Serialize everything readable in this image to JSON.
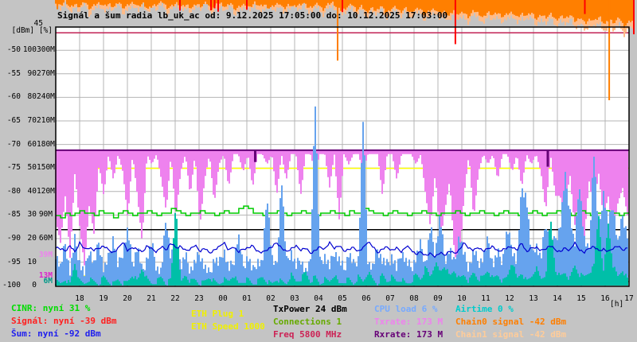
{
  "title": "Signál a šum radia lb_uk_ac od: 9.12.2025 17:05:00 do: 10.12.2025 17:03:00",
  "y_axis": {
    "top_tick": "45",
    "units": "[dBm] [%]",
    "rows": [
      {
        "dbm": "-50",
        "pct": "100",
        "mbit": "300M"
      },
      {
        "dbm": "-55",
        "pct": "90",
        "mbit": "270M"
      },
      {
        "dbm": "-60",
        "pct": "80",
        "mbit": "240M"
      },
      {
        "dbm": "-65",
        "pct": "70",
        "mbit": "210M"
      },
      {
        "dbm": "-70",
        "pct": "60",
        "mbit": "180M"
      },
      {
        "dbm": "-75",
        "pct": "50",
        "mbit": "150M"
      },
      {
        "dbm": "-80",
        "pct": "40",
        "mbit": "120M"
      },
      {
        "dbm": "-85",
        "pct": "30",
        "mbit": "90M"
      },
      {
        "dbm": "-90",
        "pct": "20",
        "mbit": "60M"
      },
      {
        "dbm": "-95",
        "pct": "10",
        "mbit": ""
      },
      {
        "dbm": "-100",
        "pct": "0",
        "mbit": ""
      }
    ],
    "overlays": [
      {
        "text": "39M",
        "color": "#ee82ee",
        "mbit": 39
      },
      {
        "text": "13M",
        "color": "#dd22cc",
        "mbit": 13
      },
      {
        "text": "6M",
        "color": "#009988",
        "mbit": 6
      }
    ]
  },
  "x_axis": {
    "hours": [
      "18",
      "19",
      "20",
      "21",
      "22",
      "23",
      "00",
      "01",
      "02",
      "03",
      "04",
      "05",
      "06",
      "07",
      "08",
      "09",
      "10",
      "11",
      "12",
      "13",
      "14",
      "15",
      "16",
      "17"
    ],
    "unit": "[h]"
  },
  "legend": {
    "radio_left": [
      {
        "label": "CINR: nyní 31 %",
        "color": "#00dd00"
      },
      {
        "label": "Signál: nyní -39 dBm",
        "color": "#ff2020"
      },
      {
        "label": "Šum: nyní -92 dBm",
        "color": "#2020ee"
      }
    ],
    "eth": [
      {
        "label": "ETH Plug 1",
        "color": "#f0f000"
      },
      {
        "label": "ETH Speed 1000",
        "color": "#f0f000"
      }
    ],
    "radio_info": [
      {
        "label": "TxPower 24 dBm",
        "color": "#000000"
      },
      {
        "label": "Connections 1",
        "color": "#66aa00"
      },
      {
        "label": "Freq 5800 MHz",
        "color": "#cc2255"
      }
    ],
    "rates": [
      {
        "label": "CPU load 6 %",
        "color": "#77aaff"
      },
      {
        "label": "Txrate: 173 M",
        "color": "#ee82ee"
      },
      {
        "label": "Rxrate: 173 M",
        "color": "#660077"
      }
    ],
    "chains": [
      {
        "label": "Airtime 0 %",
        "color": "#00cccc"
      },
      {
        "label": "Chain0 signal -42 dBm",
        "color": "#ff7f00"
      },
      {
        "label": "Chain1 signal -42 dBm",
        "color": "#ffcc99"
      }
    ]
  },
  "chart_data": {
    "type": "line",
    "title": "Signál a šum radia lb_uk_ac",
    "time_span_hours": 24,
    "x_start": "9.12.2025 17:05:00",
    "x_end": "10.12.2025 17:03:00",
    "axes": {
      "dbm_range": [
        -100,
        -45
      ],
      "pct_range": [
        0,
        100
      ],
      "mbit_range": [
        0,
        300
      ],
      "grid": true
    },
    "series": [
      {
        "name": "cinr_pct",
        "color": "#00cc00",
        "axis": "pct",
        "style": "step",
        "samples": [
          30,
          29,
          31,
          30,
          31,
          32,
          31,
          31,
          30,
          32,
          31,
          31,
          29,
          31,
          32,
          31,
          30,
          31,
          31,
          32,
          31,
          30,
          31,
          31,
          33,
          32,
          31,
          30,
          31,
          31,
          32,
          31,
          31,
          30,
          31,
          32,
          31,
          31,
          33,
          34,
          33,
          31,
          31,
          30,
          31,
          31,
          32,
          31,
          30,
          31,
          31,
          32,
          31,
          31,
          30,
          31,
          31,
          32,
          31,
          31,
          30,
          32,
          31,
          31,
          33,
          32,
          31,
          31,
          30,
          31,
          32,
          31,
          31,
          30,
          31,
          31,
          32,
          31,
          31,
          30,
          31,
          31,
          31,
          32,
          31,
          30,
          31,
          31,
          32,
          31,
          31,
          30,
          31,
          32,
          31,
          31,
          30,
          31,
          31,
          32,
          31,
          30,
          31,
          31,
          32,
          31,
          31,
          30,
          31,
          32,
          31,
          30,
          31,
          31,
          32,
          31,
          31,
          30,
          31,
          31
        ]
      },
      {
        "name": "noise_dbm",
        "color": "#0000d0",
        "axis": "dbm",
        "style": "line",
        "jitter": 0.22,
        "samples": [
          -91.8,
          -92.2,
          -92.6,
          -91.5,
          -92.9,
          -90.8,
          -92.3,
          -91.9,
          -92.5,
          -92.0,
          -91.6,
          -92.4,
          -93.0,
          -92.1,
          -90.6,
          -92.7,
          -91.8,
          -92.3,
          -92.9,
          -91.5,
          -92.2,
          -92.8,
          -91.7,
          -92.4,
          -90.9,
          -92.0,
          -91.6,
          -92.6,
          -92.2,
          -91.4,
          -92.7,
          -92.0,
          -93.1,
          -92.4,
          -91.8,
          -90.7,
          -92.6,
          -91.6,
          -92.9,
          -92.2,
          -92.0,
          -91.5,
          -92.7,
          -93.0,
          -92.3,
          -91.8,
          -90.8,
          -92.0,
          -92.8,
          -92.1,
          -91.6,
          -92.4,
          -92.0,
          -93.1,
          -92.5,
          -91.8,
          -92.2,
          -90.9,
          -92.0,
          -91.5,
          -92.6,
          -92.3,
          -91.9,
          -92.7,
          -92.0,
          -90.6,
          -91.7,
          -93.0,
          -92.2,
          -91.8,
          -92.5,
          -92.0,
          -92.8,
          -91.6,
          -92.3,
          -93.4,
          -92.8,
          -93.6,
          -93.2,
          -93.8,
          -93.0,
          -93.5,
          -92.6,
          -93.2,
          -92.4,
          -90.9,
          -92.0,
          -92.5,
          -91.8,
          -92.7,
          -92.1,
          -91.6,
          -92.8,
          -92.3,
          -92.0,
          -91.7,
          -92.5,
          -90.8,
          -92.9,
          -92.0,
          -91.8,
          -92.6,
          -92.1,
          -91.5,
          -92.4,
          -92.8,
          -92.0,
          -92.5,
          -90.9,
          -92.3,
          -93.0,
          -92.0,
          -91.7,
          -92.6,
          -92.2,
          -92.8,
          -92.0,
          -91.6,
          -92.4,
          -92.0
        ]
      },
      {
        "name": "txpower_dbm",
        "color": "#000000",
        "axis": "pct",
        "style": "hline",
        "value": 24
      },
      {
        "name": "eth_speed_marker",
        "color": "#ffff00",
        "axis": "mbit",
        "style": "hline",
        "value": 150
      },
      {
        "name": "marker_13m",
        "color": "#ffff00",
        "axis": "mbit",
        "style": "hline",
        "value": 13
      },
      {
        "name": "marker_6m",
        "color": "#7a7a00",
        "axis": "mbit",
        "style": "hline",
        "value": 6
      },
      {
        "name": "freq_marker",
        "color": "#c22255",
        "axis": "dbm",
        "style": "hline",
        "value": -46.3
      },
      {
        "name": "cpu_pct",
        "color": "#66a3ee",
        "axis": "pct",
        "style": "bars_up",
        "jitter": 2.5,
        "samples": [
          14,
          8,
          18,
          6,
          20,
          10,
          5,
          16,
          9,
          19,
          7,
          12,
          21,
          8,
          15,
          24,
          9,
          17,
          6,
          12,
          18,
          8,
          6,
          30,
          11,
          26,
          8,
          13,
          7,
          10,
          14,
          8,
          5,
          12,
          9,
          16,
          7,
          10,
          22,
          8,
          13,
          6,
          11,
          9,
          40,
          12,
          7,
          47,
          10,
          15,
          8,
          12,
          6,
          9,
          80,
          10,
          13,
          8,
          15,
          11,
          7,
          14,
          9,
          12,
          72,
          10,
          8,
          16,
          11,
          9,
          13,
          7,
          15,
          10,
          8,
          12,
          18,
          9,
          25,
          14,
          30,
          11,
          16,
          9,
          22,
          13,
          8,
          15,
          10,
          12,
          20,
          9,
          14,
          11,
          24,
          16,
          10,
          42,
          38,
          13,
          18,
          11,
          28,
          15,
          20,
          25,
          47,
          33,
          16,
          45,
          20,
          14,
          58,
          22,
          40,
          26,
          35,
          18,
          30,
          22
        ]
      },
      {
        "name": "airtime_pct",
        "color": "#00bfa8",
        "axis": "pct",
        "style": "bars_up",
        "jitter": 1,
        "samples": [
          2,
          1,
          3,
          1,
          10,
          2,
          1,
          3,
          2,
          1,
          4,
          2,
          1,
          3,
          1,
          2,
          5,
          2,
          8,
          3,
          1,
          2,
          4,
          1,
          3,
          36,
          1,
          5,
          2,
          3,
          1,
          2,
          4,
          2,
          1,
          3,
          2,
          5,
          1,
          2,
          3,
          1,
          2,
          4,
          2,
          1,
          3,
          2,
          1,
          5,
          2,
          3,
          6,
          2,
          4,
          1,
          3,
          2,
          5,
          1,
          2,
          3,
          1,
          4,
          2,
          6,
          3,
          1,
          5,
          2,
          4,
          2,
          3,
          1,
          2,
          5,
          3,
          8,
          4,
          10,
          6,
          9,
          4,
          7,
          3,
          5,
          2,
          6,
          3,
          4,
          7,
          3,
          5,
          2,
          4,
          11,
          3,
          6,
          2,
          4,
          8,
          3,
          5,
          29,
          7,
          4,
          6,
          3,
          9,
          5,
          4,
          6,
          8,
          31,
          5,
          27,
          9,
          4,
          7,
          3
        ]
      },
      {
        "name": "txrate_mbit",
        "color": "#ee82ee",
        "axis": "mbit",
        "style": "drops_from_base",
        "base": 173,
        "jitter": 5,
        "samples": [
          90,
          60,
          120,
          40,
          150,
          80,
          30,
          110,
          70,
          160,
          120,
          173,
          140,
          173,
          150,
          90,
          173,
          120,
          60,
          173,
          160,
          173,
          140,
          100,
          173,
          90,
          150,
          173,
          120,
          173,
          80,
          140,
          173,
          110,
          160,
          173,
          130,
          173,
          173,
          150,
          173,
          130,
          173,
          173,
          160,
          173,
          120,
          173,
          140,
          173,
          173,
          120,
          173,
          173,
          150,
          173,
          173,
          130,
          173,
          90,
          173,
          160,
          173,
          173,
          150,
          173,
          173,
          173,
          120,
          173,
          173,
          140,
          173,
          173,
          173,
          160,
          173,
          120,
          80,
          150,
          60,
          100,
          140,
          45,
          29,
          120,
          173,
          90,
          150,
          173,
          160,
          173,
          140,
          173,
          173,
          150,
          173,
          130,
          173,
          160,
          173,
          150,
          100,
          173,
          120,
          120,
          90,
          150,
          80,
          130,
          60,
          140,
          100,
          150,
          90,
          120,
          70,
          110,
          130,
          95
        ]
      },
      {
        "name": "rxrate_mbit",
        "color": "#660077",
        "axis": "mbit",
        "style": "hline_with_dips",
        "value": 173,
        "dips": [
          {
            "t": 8.35,
            "v": 158
          },
          {
            "t": 20.6,
            "v": 152
          }
        ]
      },
      {
        "name": "chain1_dbm",
        "color": "#ffbb88",
        "axis": "dbm",
        "style": "bars_from_top",
        "jitter": 0.45,
        "samples": [
          -40.2,
          -41.5,
          -39.8,
          -42.3,
          -40.6,
          -41.9,
          -39.6,
          -42.8,
          -41.1,
          -40.4,
          -42.0,
          -40.8,
          -41.6,
          -39.9,
          -42.5,
          -41.2,
          -40.5,
          -41.8,
          -40.1,
          -42.2,
          -40.7,
          -41.4,
          -39.8,
          -42.6,
          -41.0,
          -40.3,
          -41.7,
          -40.9,
          -42.1,
          -40.5,
          -41.3,
          -39.9,
          -42.4,
          -41.1,
          -40.6,
          -41.9,
          -40.2,
          -42.7,
          -41.4,
          -40.8,
          -41.6,
          -40.3,
          -42.0,
          -41.2,
          -40.6,
          -41.8,
          -40.4,
          -42.3,
          -41.0,
          -40.7,
          -41.5,
          -40.2,
          -42.1,
          -41.3,
          -40.8,
          -42.6,
          -41.1,
          -40.5,
          -41.9,
          -42.3,
          -41.6,
          -40.9,
          -42.8,
          -41.2,
          -43.1,
          -41.8,
          -42.4,
          -41.0,
          -43.5,
          -42.0,
          -41.4,
          -42.9,
          -41.6,
          -43.2,
          -42.2,
          -41.8,
          -43.8,
          -42.4,
          -41.9,
          -43.4,
          -42.6,
          -44.0,
          -42.1,
          -43.6,
          -42.8,
          -44.3,
          -42.3,
          -43.0,
          -44.6,
          -42.5,
          -43.8,
          -42.9,
          -44.1,
          -43.3,
          -42.6,
          -44.4,
          -43.0,
          -43.7,
          -42.8,
          -44.8,
          -43.5,
          -44.2,
          -43.1,
          -45.0,
          -43.8,
          -44.5,
          -43.2,
          -45.5,
          -44.0,
          -46.0,
          -44.6,
          -45.2,
          -43.9,
          -46.4,
          -44.8,
          -45.8,
          -44.2,
          -46.8,
          -45.4,
          -44.9
        ]
      },
      {
        "name": "chain0_dbm",
        "color": "#ff7f00",
        "axis": "dbm",
        "style": "bars_from_top",
        "jitter": 0.3,
        "samples": [
          -39.8,
          -40.6,
          -39.5,
          -41.0,
          -40.2,
          -40.8,
          -39.6,
          -41.2,
          -40.4,
          -39.9,
          -40.7,
          -40.1,
          -40.9,
          -39.7,
          -41.1,
          -40.3,
          -39.8,
          -40.8,
          -40.0,
          -41.3,
          -40.5,
          -40.2,
          -39.7,
          -41.0,
          -40.6,
          -39.9,
          -40.8,
          -40.3,
          -41.1,
          -40.1,
          -40.7,
          -39.8,
          -41.2,
          -40.4,
          -40.0,
          -40.9,
          -39.9,
          -41.4,
          -40.6,
          -40.2,
          -41.0,
          -39.8,
          -40.7,
          -40.3,
          -41.1,
          -40.5,
          -39.9,
          -41.3,
          -40.2,
          -40.8,
          -40.4,
          -39.9,
          -41.0,
          -40.6,
          -40.1,
          -41.4,
          -40.3,
          -39.8,
          -41.1,
          -41.6,
          -40.8,
          -40.2,
          -41.5,
          -40.6,
          -42.0,
          -41.0,
          -41.7,
          -40.4,
          -42.3,
          -41.2,
          -40.8,
          -41.9,
          -41.0,
          -42.1,
          -41.4,
          -41.1,
          -42.5,
          -41.6,
          -41.2,
          -42.2,
          -41.8,
          -42.8,
          -41.4,
          -42.4,
          -41.9,
          -43.0,
          -41.6,
          -42.1,
          -43.2,
          -41.8,
          -42.6,
          -42.0,
          -42.9,
          -42.3,
          -41.9,
          -43.1,
          -42.2,
          -42.7,
          -42.0,
          -43.4,
          -42.5,
          -43.0,
          -42.3,
          -43.6,
          -42.8,
          -43.2,
          -42.4,
          -44.0,
          -42.9,
          -44.4,
          -43.3,
          -43.8,
          -42.8,
          -44.6,
          -43.4,
          -44.2,
          -43.0,
          -45.0,
          -44.0,
          -43.6
        ]
      },
      {
        "name": "signal_red_ticks",
        "color": "#ff0000",
        "axis": "dbm",
        "style": "vlines_from_top",
        "lines": [
          {
            "t": 5.2,
            "v": -41.6
          },
          {
            "t": 6.5,
            "v": -41.5
          },
          {
            "t": 6.65,
            "v": -41.1
          },
          {
            "t": 6.8,
            "v": -41.8
          },
          {
            "t": 8.0,
            "v": -41.4
          },
          {
            "t": 12.0,
            "v": -41.9
          },
          {
            "t": 16.73,
            "v": -48.7
          },
          {
            "t": 22.15,
            "v": -42.3
          },
          {
            "t": 24.2,
            "v": -46.6
          }
        ]
      },
      {
        "name": "chain_fades",
        "axis": "dbm",
        "style": "vlines_from_top",
        "lines": [
          {
            "t": 0.07,
            "v": -41.3,
            "color": "#ff7f00"
          },
          {
            "t": 11.8,
            "v": -52.2,
            "color": "#ff7f00"
          },
          {
            "t": 23.17,
            "v": -60.6,
            "color": "#ff7f00"
          }
        ]
      }
    ]
  },
  "colors": {
    "background": "#c4c4c4",
    "plot_background": "#ffffff",
    "grid": "#b4b4b4",
    "border": "#000000"
  }
}
